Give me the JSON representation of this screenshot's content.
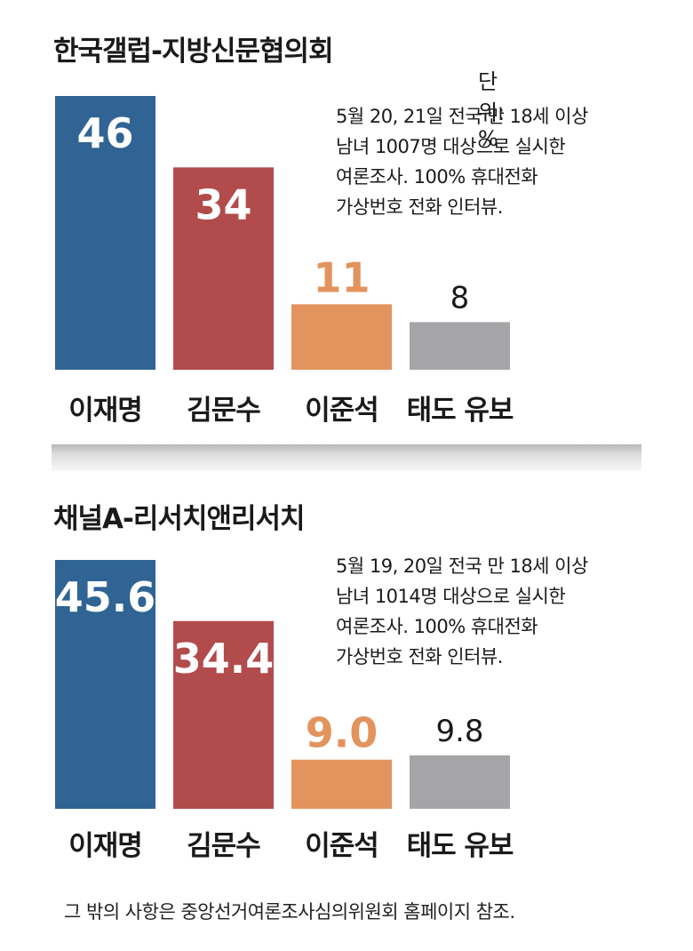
{
  "unit_label": "단위: %",
  "footer": "그 밖의 사항은 중앙선거여론조사심의위원회 홈페이지 참조.",
  "colors": {
    "lee_jaemyung": "#2f6494",
    "kim_moonsoo": "#b24b4b",
    "lee_junseok": "#e3935d",
    "undecided": "#a5a5a8"
  },
  "chart_data": [
    {
      "type": "bar",
      "title": "한국갤럽-지방신문협의회",
      "note_lines": [
        "5월 20, 21일 전국 만 18세 이상",
        "남녀 1007명 대상으로 실시한",
        "여론조사. 100% 휴대전화",
        "가상번호 전화 인터뷰."
      ],
      "categories": [
        "이재명",
        "김문수",
        "이준석",
        "태도 유보"
      ],
      "values": [
        46,
        34,
        11,
        8
      ],
      "value_labels": [
        "46",
        "34",
        "11",
        "8"
      ],
      "ylim": [
        0,
        46
      ]
    },
    {
      "type": "bar",
      "title": "채널A-리서치앤리서치",
      "note_lines": [
        "5월 19, 20일 전국 만 18세 이상",
        "남녀 1014명 대상으로 실시한",
        "여론조사. 100% 휴대전화",
        "가상번호 전화 인터뷰."
      ],
      "categories": [
        "이재명",
        "김문수",
        "이준석",
        "태도 유보"
      ],
      "values": [
        45.6,
        34.4,
        9.0,
        9.8
      ],
      "value_labels": [
        "45.6",
        "34.4",
        "9.0",
        "9.8"
      ],
      "ylim": [
        0,
        45.6
      ]
    }
  ]
}
